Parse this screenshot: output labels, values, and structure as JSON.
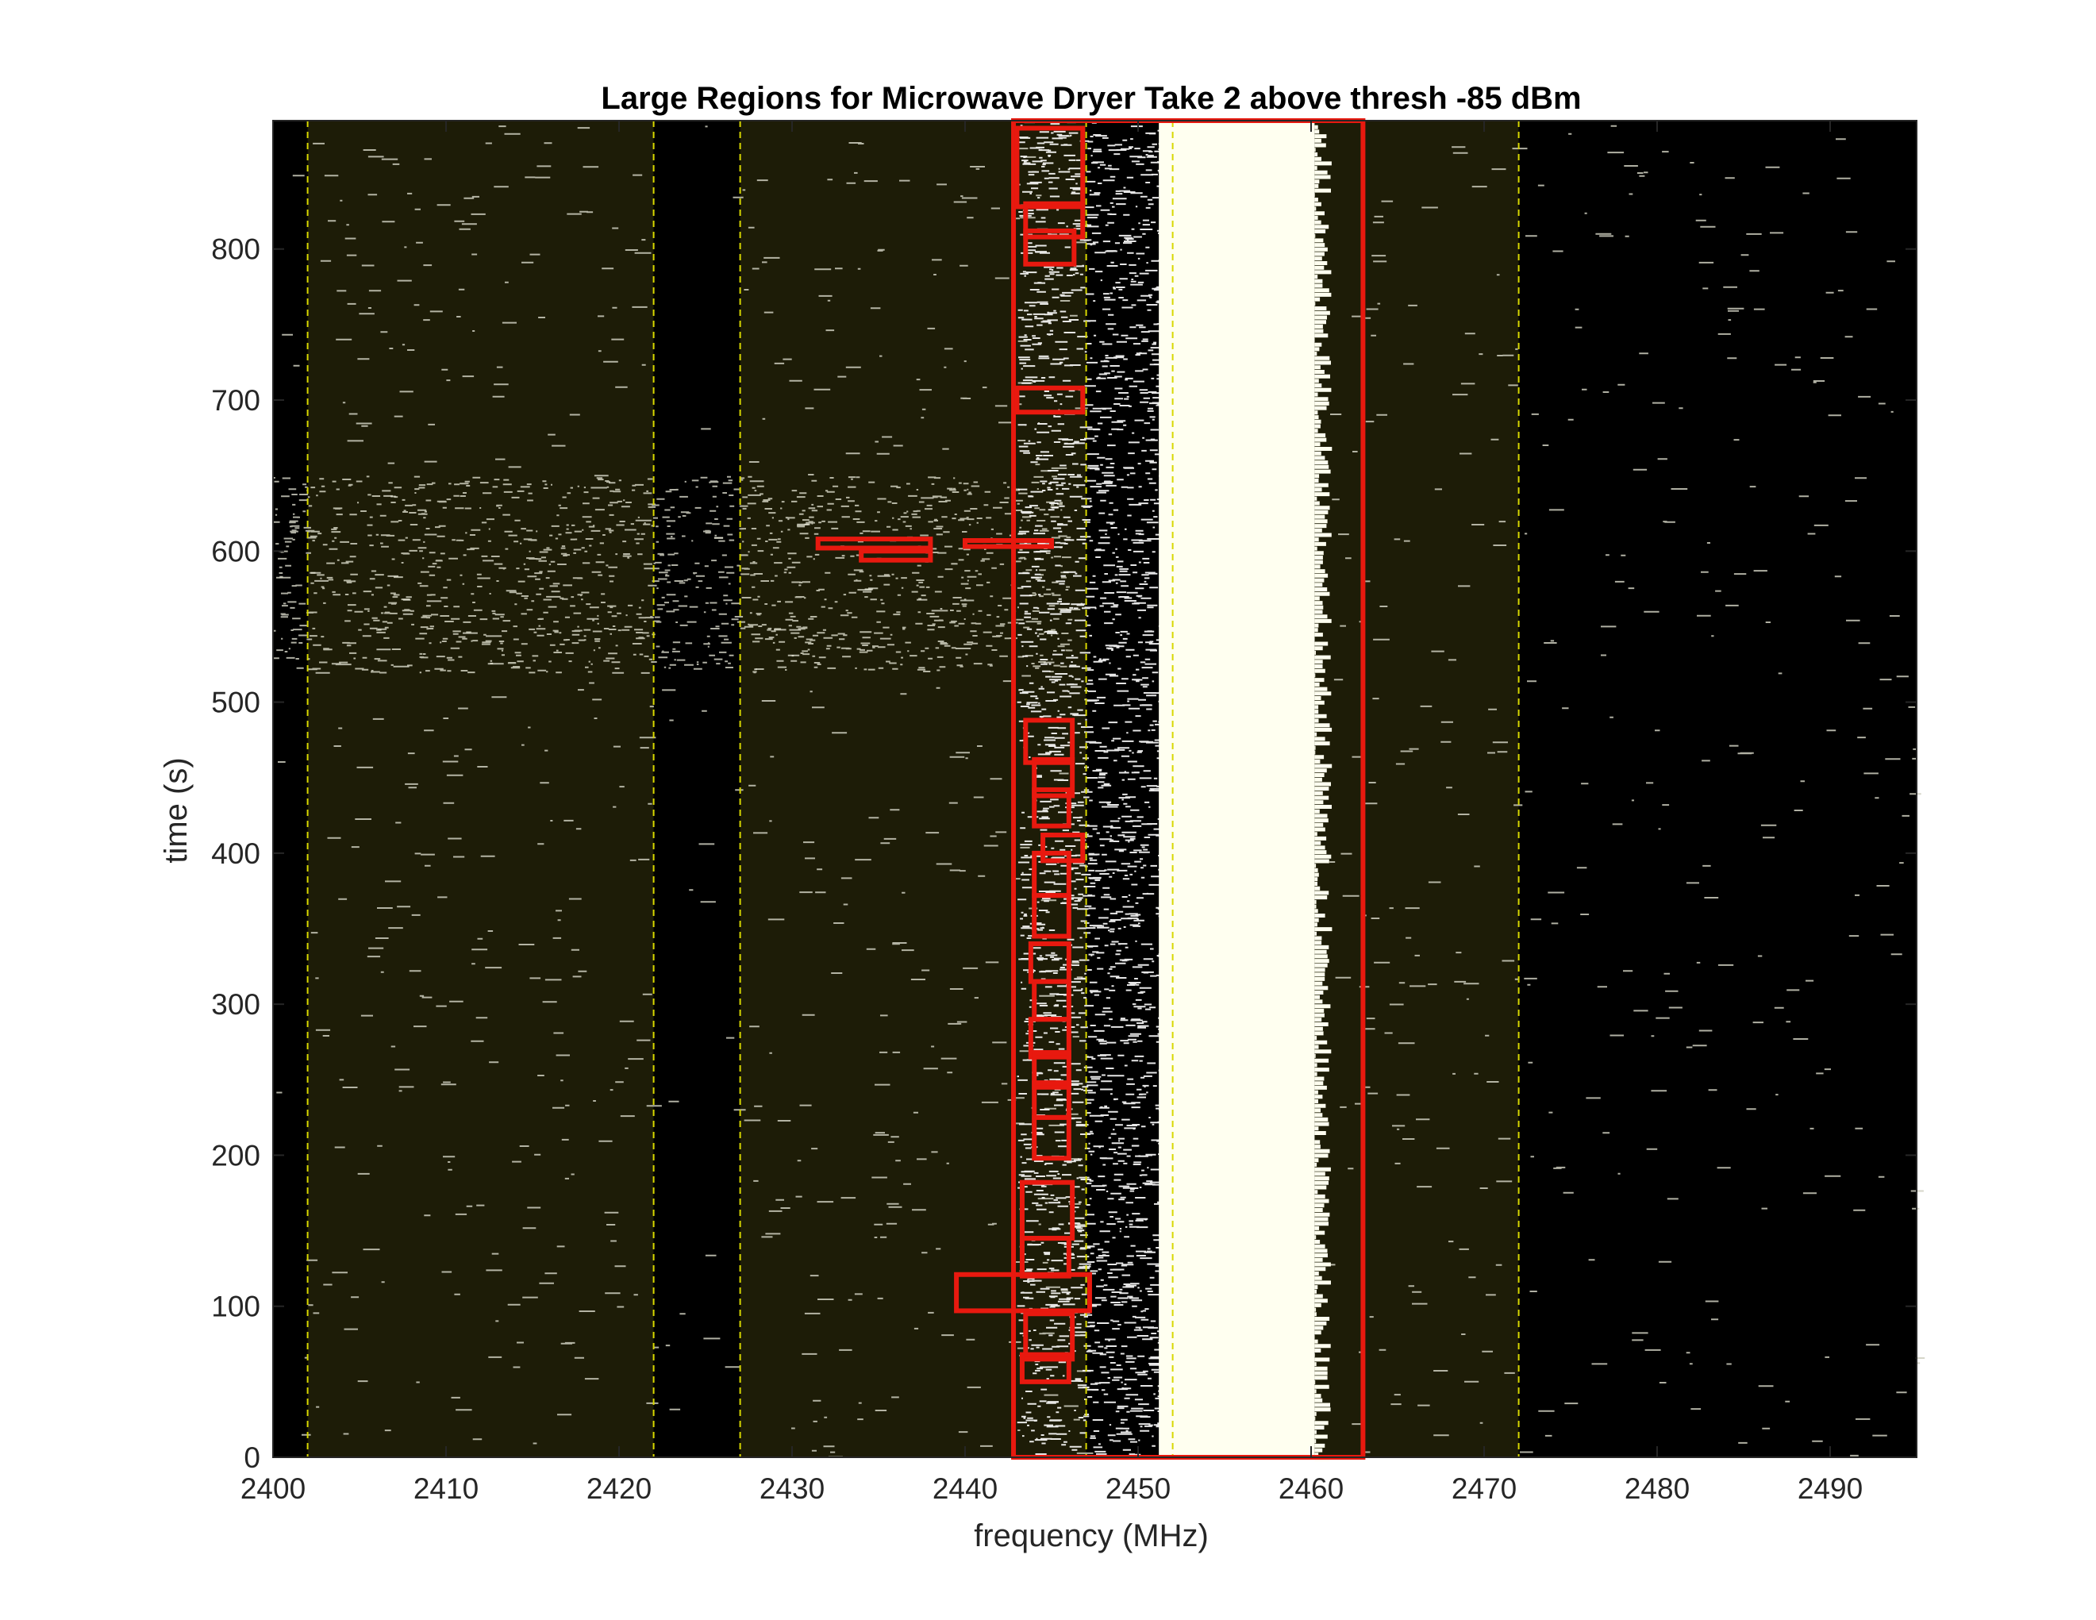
{
  "chart_data": {
    "type": "heatmap",
    "title": "Large Regions for Microwave Dryer Take 2 above thresh -85 dBm",
    "xlabel": "frequency (MHz)",
    "ylabel": "time (s)",
    "xlim": [
      2400,
      2495
    ],
    "ylim": [
      0,
      885
    ],
    "x_ticks": [
      2400,
      2410,
      2420,
      2430,
      2440,
      2450,
      2460,
      2470,
      2480,
      2490
    ],
    "y_ticks": [
      0,
      100,
      200,
      300,
      400,
      500,
      600,
      700,
      800
    ],
    "grid": false,
    "colors": {
      "background": "#000000",
      "channel_band": "#1d1c07",
      "signal": "#fffff0",
      "channel_lines": "#d8d800",
      "region_box": "#e8190f"
    },
    "channel_bands_mhz": [
      [
        2402,
        2422
      ],
      [
        2427,
        2447
      ],
      [
        2452,
        2472
      ]
    ],
    "channel_lines_mhz": [
      2402,
      2422,
      2427,
      2447,
      2452,
      2472
    ],
    "regions": [
      {
        "f": [
          2442.8,
          2463.0
        ],
        "t": [
          0,
          885
        ]
      },
      {
        "f": [
          2443.0,
          2446.8
        ],
        "t": [
          828,
          880
        ]
      },
      {
        "f": [
          2443.5,
          2446.8
        ],
        "t": [
          808,
          830
        ]
      },
      {
        "f": [
          2443.5,
          2446.3
        ],
        "t": [
          790,
          812
        ]
      },
      {
        "f": [
          2443.0,
          2446.8
        ],
        "t": [
          692,
          708
        ]
      },
      {
        "f": [
          2431.5,
          2438.0
        ],
        "t": [
          602,
          608
        ]
      },
      {
        "f": [
          2434.0,
          2438.0
        ],
        "t": [
          594,
          600
        ]
      },
      {
        "f": [
          2440.0,
          2445.0
        ],
        "t": [
          603,
          607
        ]
      },
      {
        "f": [
          2443.5,
          2446.2
        ],
        "t": [
          460,
          488
        ]
      },
      {
        "f": [
          2444.0,
          2446.2
        ],
        "t": [
          438,
          462
        ]
      },
      {
        "f": [
          2444.0,
          2446.0
        ],
        "t": [
          418,
          442
        ]
      },
      {
        "f": [
          2444.5,
          2446.8
        ],
        "t": [
          395,
          412
        ]
      },
      {
        "f": [
          2444.0,
          2446.0
        ],
        "t": [
          372,
          400
        ]
      },
      {
        "f": [
          2444.0,
          2446.0
        ],
        "t": [
          345,
          372
        ]
      },
      {
        "f": [
          2443.8,
          2446.0
        ],
        "t": [
          315,
          340
        ]
      },
      {
        "f": [
          2444.0,
          2446.0
        ],
        "t": [
          290,
          315
        ]
      },
      {
        "f": [
          2443.8,
          2446.0
        ],
        "t": [
          265,
          290
        ]
      },
      {
        "f": [
          2444.0,
          2446.0
        ],
        "t": [
          245,
          268
        ]
      },
      {
        "f": [
          2444.0,
          2446.0
        ],
        "t": [
          225,
          248
        ]
      },
      {
        "f": [
          2444.0,
          2446.0
        ],
        "t": [
          198,
          225
        ]
      },
      {
        "f": [
          2443.3,
          2446.2
        ],
        "t": [
          145,
          182
        ]
      },
      {
        "f": [
          2443.3,
          2446.0
        ],
        "t": [
          120,
          145
        ]
      },
      {
        "f": [
          2439.5,
          2447.2
        ],
        "t": [
          97,
          121
        ]
      },
      {
        "f": [
          2443.5,
          2446.2
        ],
        "t": [
          65,
          95
        ]
      },
      {
        "f": [
          2443.3,
          2446.0
        ],
        "t": [
          50,
          68
        ]
      }
    ]
  }
}
